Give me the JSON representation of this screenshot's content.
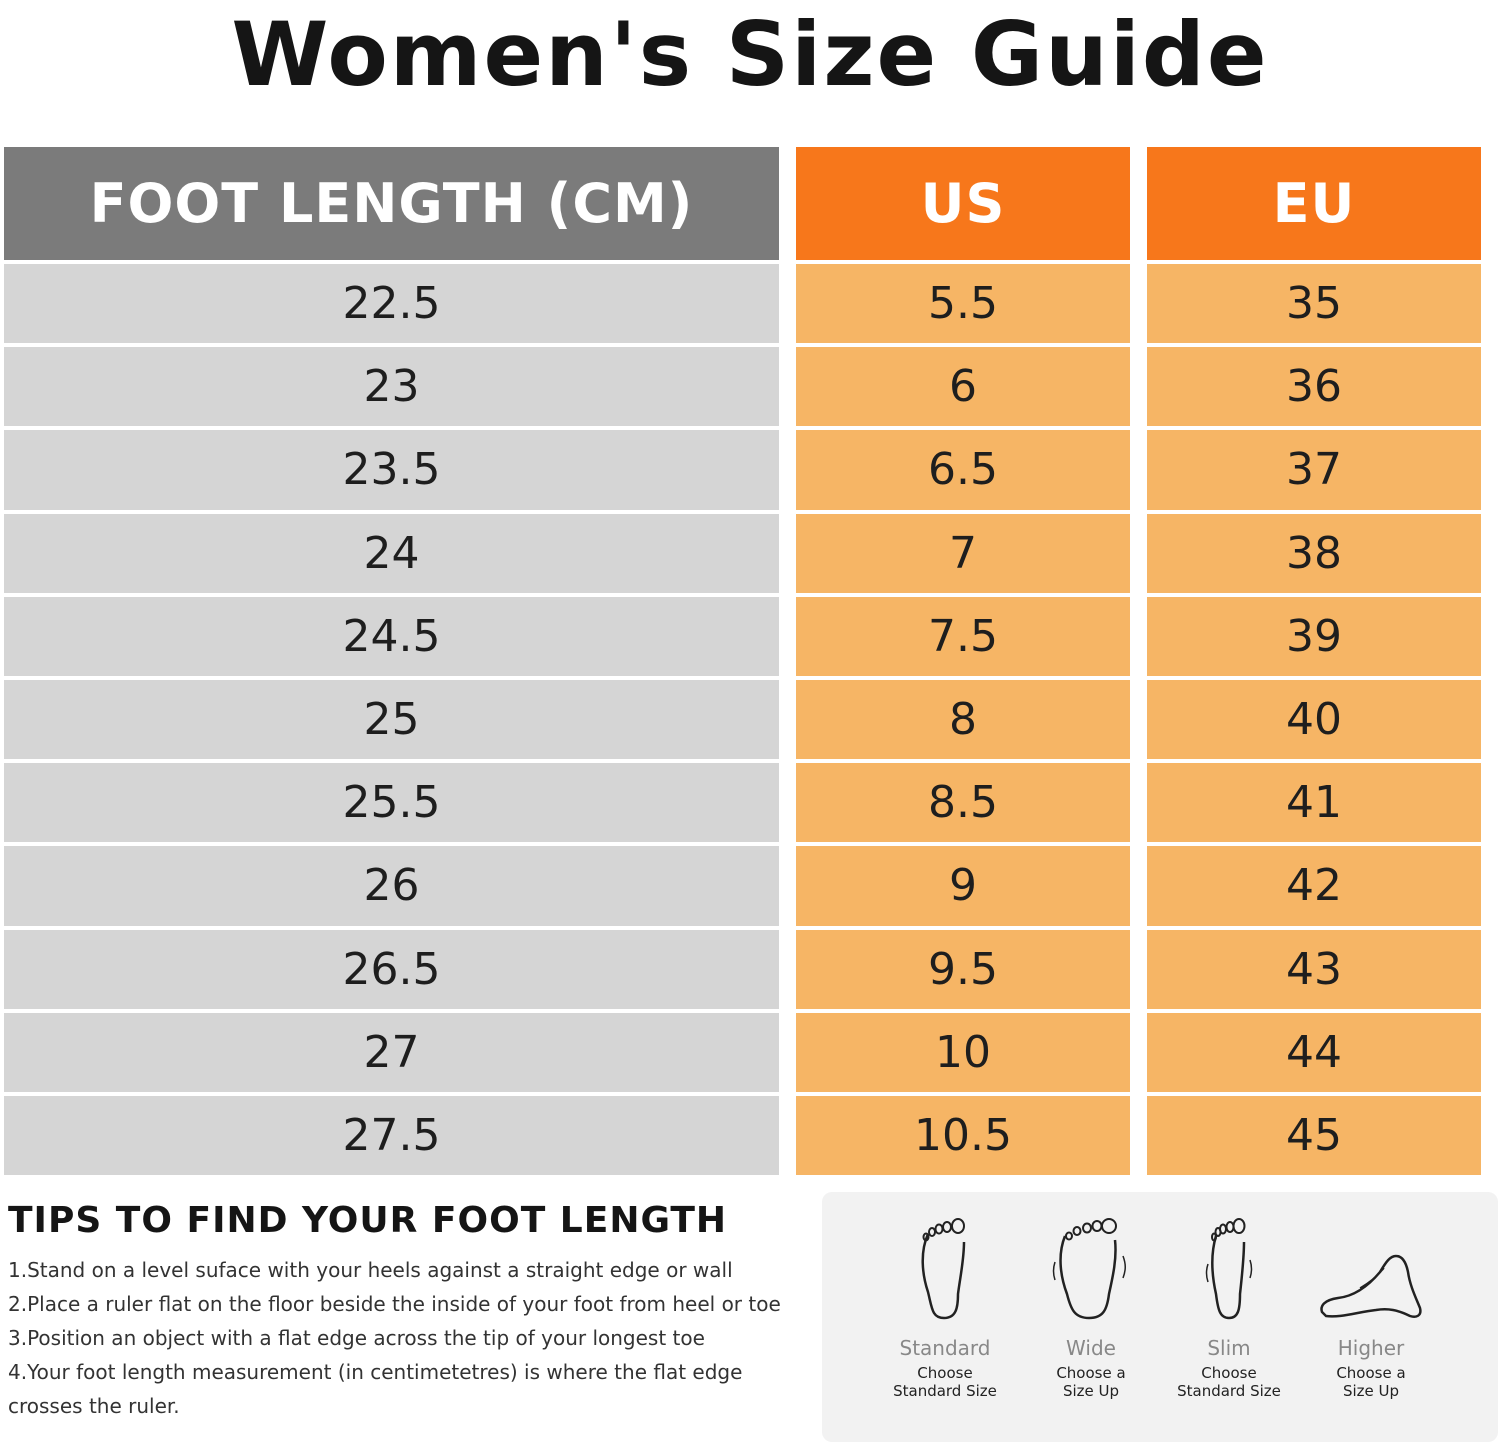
{
  "title": "Women's Size Guide",
  "table": {
    "headers": {
      "length": "FOOT LENGTH (CM)",
      "us": "US",
      "eu": "EU"
    },
    "rows": [
      {
        "cm": "22.5",
        "us": "5.5",
        "eu": "35"
      },
      {
        "cm": "23",
        "us": "6",
        "eu": "36"
      },
      {
        "cm": "23.5",
        "us": "6.5",
        "eu": "37"
      },
      {
        "cm": "24",
        "us": "7",
        "eu": "38"
      },
      {
        "cm": "24.5",
        "us": "7.5",
        "eu": "39"
      },
      {
        "cm": "25",
        "us": "8",
        "eu": "40"
      },
      {
        "cm": "25.5",
        "us": "8.5",
        "eu": "41"
      },
      {
        "cm": "26",
        "us": "9",
        "eu": "42"
      },
      {
        "cm": "26.5",
        "us": "9.5",
        "eu": "43"
      },
      {
        "cm": "27",
        "us": "10",
        "eu": "44"
      },
      {
        "cm": "27.5",
        "us": "10.5",
        "eu": "45"
      }
    ]
  },
  "tips": {
    "title": "TIPS TO FIND YOUR FOOT LENGTH",
    "items": [
      "1.Stand on a level suface with your heels against a straight edge or wall",
      "2.Place a ruler flat on the floor beside the inside of your foot from heel or toe",
      "3.Position an object with a flat edge across the tip of your longest toe",
      "4.Your foot length measurement (in centimetetres) is where the flat edge crosses the ruler."
    ]
  },
  "fit_guide": [
    {
      "label": "Standard",
      "advice": "Choose\nStandard Size",
      "icon": "standard-foot-icon"
    },
    {
      "label": "Wide",
      "advice": "Choose a\nSize Up",
      "icon": "wide-foot-icon"
    },
    {
      "label": "Slim",
      "advice": "Choose\nStandard Size",
      "icon": "slim-foot-icon"
    },
    {
      "label": "Higher",
      "advice": "Choose a\nSize Up",
      "icon": "high-arch-foot-icon"
    }
  ],
  "colors": {
    "header_gray": "#7b7b7b",
    "header_orange": "#f7771b",
    "cell_gray": "#d5d5d5",
    "cell_orange": "#f6b565"
  }
}
